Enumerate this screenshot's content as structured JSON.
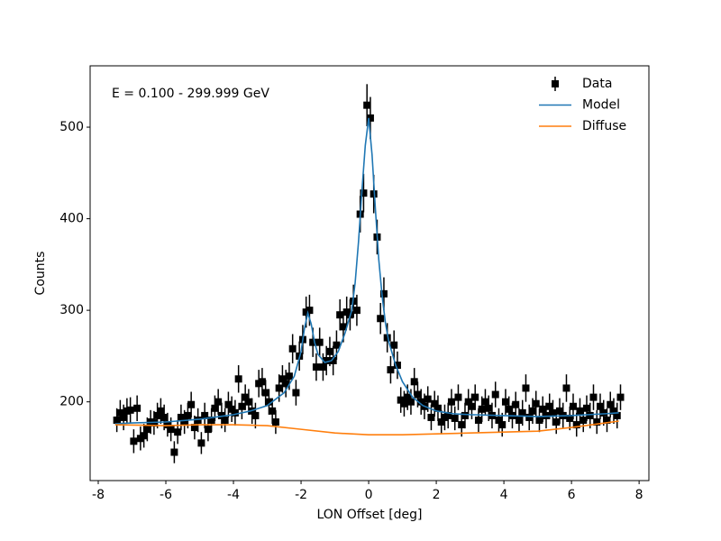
{
  "chart_data": {
    "type": "line",
    "annotation": "E = 0.100 - 299.999 GeV",
    "x_label": "LON Offset [deg]",
    "y_label": "Counts",
    "xlim": [
      -8.24,
      8.29
    ],
    "ylim": [
      114,
      567
    ],
    "xticks": [
      -8,
      -6,
      -4,
      -2,
      0,
      2,
      4,
      6,
      8
    ],
    "yticks": [
      200,
      300,
      400,
      500
    ],
    "legend": "upper-right",
    "series": [
      {
        "name": "Data",
        "type": "errorbar",
        "color": "#000000",
        "x": [
          -7.45,
          -7.35,
          -7.25,
          -7.15,
          -7.05,
          -6.95,
          -6.85,
          -6.75,
          -6.65,
          -6.55,
          -6.45,
          -6.35,
          -6.25,
          -6.15,
          -6.05,
          -5.95,
          -5.85,
          -5.75,
          -5.65,
          -5.55,
          -5.45,
          -5.35,
          -5.25,
          -5.15,
          -5.05,
          -4.95,
          -4.85,
          -4.75,
          -4.65,
          -4.55,
          -4.45,
          -4.35,
          -4.25,
          -4.15,
          -4.05,
          -3.95,
          -3.85,
          -3.75,
          -3.65,
          -3.55,
          -3.45,
          -3.35,
          -3.25,
          -3.15,
          -3.05,
          -2.95,
          -2.85,
          -2.75,
          -2.65,
          -2.55,
          -2.45,
          -2.35,
          -2.25,
          -2.15,
          -2.05,
          -1.95,
          -1.85,
          -1.75,
          -1.65,
          -1.55,
          -1.45,
          -1.35,
          -1.25,
          -1.15,
          -1.05,
          -0.95,
          -0.85,
          -0.75,
          -0.65,
          -0.55,
          -0.45,
          -0.35,
          -0.25,
          -0.15,
          -0.05,
          0.05,
          0.15,
          0.25,
          0.35,
          0.45,
          0.55,
          0.65,
          0.75,
          0.85,
          0.95,
          1.05,
          1.15,
          1.25,
          1.35,
          1.45,
          1.55,
          1.65,
          1.75,
          1.85,
          1.95,
          2.05,
          2.15,
          2.25,
          2.35,
          2.45,
          2.55,
          2.65,
          2.75,
          2.85,
          2.95,
          3.05,
          3.15,
          3.25,
          3.35,
          3.45,
          3.55,
          3.65,
          3.75,
          3.85,
          3.95,
          4.05,
          4.15,
          4.25,
          4.35,
          4.45,
          4.55,
          4.65,
          4.75,
          4.85,
          4.95,
          5.05,
          5.15,
          5.25,
          5.35,
          5.45,
          5.55,
          5.65,
          5.75,
          5.85,
          5.95,
          6.05,
          6.15,
          6.25,
          6.35,
          6.45,
          6.55,
          6.65,
          6.75,
          6.85,
          6.95,
          7.05,
          7.15,
          7.25,
          7.35,
          7.45
        ],
        "values": [
          180,
          188,
          183,
          190,
          191,
          157,
          193,
          160,
          163,
          170,
          178,
          177,
          185,
          190,
          183,
          175,
          170,
          145,
          167,
          183,
          178,
          185,
          197,
          172,
          180,
          155,
          185,
          170,
          180,
          193,
          200,
          185,
          180,
          197,
          192,
          188,
          225,
          195,
          205,
          200,
          190,
          185,
          220,
          222,
          210,
          200,
          190,
          178,
          215,
          225,
          220,
          228,
          258,
          210,
          250,
          268,
          298,
          300,
          265,
          238,
          265,
          238,
          245,
          255,
          245,
          262,
          295,
          282,
          298,
          295,
          310,
          300,
          405,
          428,
          524,
          510,
          427,
          380,
          291,
          318,
          270,
          235,
          262,
          240,
          202,
          198,
          205,
          200,
          222,
          208,
          200,
          195,
          203,
          183,
          198,
          193,
          178,
          183,
          185,
          200,
          182,
          205,
          175,
          185,
          200,
          195,
          205,
          180,
          192,
          200,
          193,
          185,
          208,
          180,
          175,
          200,
          192,
          185,
          197,
          180,
          188,
          215,
          183,
          190,
          198,
          180,
          192,
          185,
          195,
          188,
          178,
          190,
          185,
          215,
          182,
          195,
          175,
          190,
          180,
          193,
          185,
          205,
          178,
          195,
          188,
          180,
          197,
          190,
          185,
          205
        ],
        "errors": [
          13,
          14,
          14,
          14,
          14,
          13,
          14,
          13,
          13,
          13,
          13,
          13,
          14,
          14,
          14,
          13,
          13,
          12,
          13,
          14,
          13,
          14,
          14,
          13,
          13,
          12,
          14,
          13,
          13,
          14,
          14,
          14,
          13,
          14,
          14,
          14,
          15,
          14,
          14,
          14,
          14,
          14,
          15,
          15,
          14,
          14,
          14,
          13,
          15,
          15,
          15,
          15,
          16,
          14,
          16,
          16,
          17,
          17,
          16,
          15,
          16,
          15,
          16,
          16,
          16,
          16,
          17,
          17,
          17,
          17,
          18,
          17,
          20,
          21,
          23,
          23,
          21,
          19,
          17,
          18,
          16,
          15,
          16,
          15,
          14,
          14,
          14,
          14,
          15,
          14,
          14,
          14,
          14,
          14,
          14,
          14,
          13,
          14,
          14,
          14,
          13,
          14,
          13,
          14,
          14,
          14,
          14,
          13,
          14,
          14,
          14,
          14,
          14,
          13,
          13,
          14,
          14,
          14,
          14,
          13,
          14,
          15,
          14,
          14,
          14,
          13,
          14,
          14,
          14,
          14,
          13,
          14,
          14,
          15,
          13,
          14,
          13,
          14,
          13,
          14,
          14,
          14,
          13,
          14,
          14,
          13,
          14,
          14,
          14,
          14
        ]
      },
      {
        "name": "Model",
        "type": "line",
        "color": "#1f77b4",
        "x": [
          -7.5,
          -7,
          -6,
          -5,
          -4,
          -3.5,
          -3,
          -2.5,
          -2.2,
          -2,
          -1.9,
          -1.8,
          -1.7,
          -1.6,
          -1.5,
          -1.3,
          -1.1,
          -0.9,
          -0.7,
          -0.5,
          -0.4,
          -0.3,
          -0.2,
          -0.1,
          0,
          0.1,
          0.2,
          0.3,
          0.4,
          0.5,
          0.6,
          0.8,
          1,
          1.3,
          1.6,
          2,
          2.5,
          3,
          4,
          5,
          6,
          7,
          7.4
        ],
        "values": [
          176,
          177,
          178,
          181,
          186,
          190,
          196,
          210,
          228,
          255,
          280,
          297,
          285,
          265,
          252,
          243,
          245,
          255,
          275,
          300,
          330,
          375,
          430,
          480,
          510,
          470,
          410,
          355,
          315,
          285,
          265,
          240,
          222,
          205,
          196,
          190,
          187,
          186,
          185,
          184,
          185,
          187,
          188
        ]
      },
      {
        "name": "Diffuse",
        "type": "line",
        "color": "#ff7f0e",
        "x": [
          -7.5,
          -6,
          -5,
          -4,
          -3,
          -2,
          -1,
          0,
          1,
          2,
          3,
          4,
          5,
          6,
          7,
          7.4
        ],
        "values": [
          175,
          174,
          175,
          175,
          174,
          170,
          166,
          164,
          164,
          165,
          166,
          167,
          168,
          172,
          177,
          179
        ]
      }
    ]
  }
}
